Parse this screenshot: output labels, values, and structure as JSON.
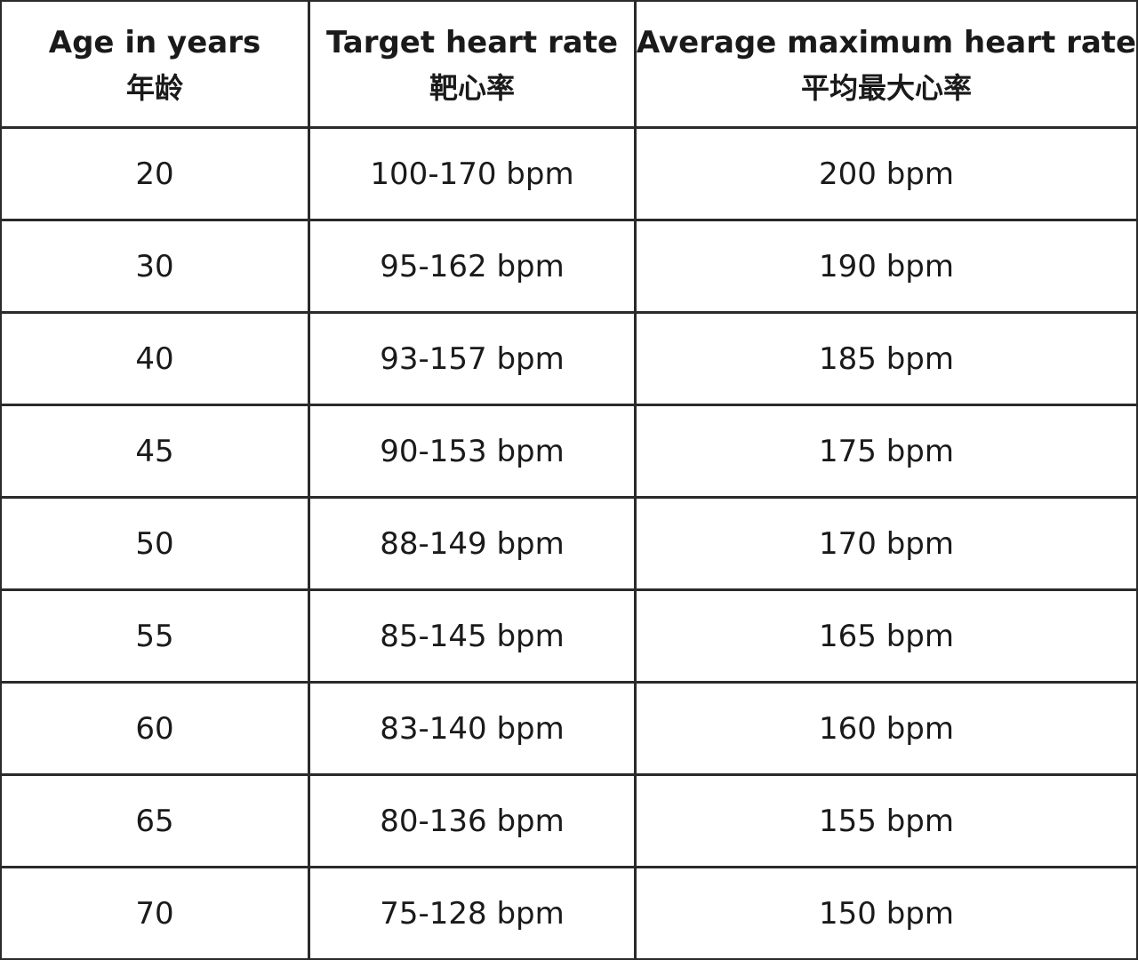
{
  "table": {
    "columns": [
      {
        "title": "Age in years",
        "subtitle": "年龄"
      },
      {
        "title": "Target heart rate",
        "subtitle": "靶心率"
      },
      {
        "title": "Average maximum heart rate",
        "subtitle": "平均最大心率"
      }
    ],
    "rows": [
      [
        "20",
        "100-170 bpm",
        "200 bpm"
      ],
      [
        "30",
        "95-162 bpm",
        "190 bpm"
      ],
      [
        "40",
        "93-157 bpm",
        "185 bpm"
      ],
      [
        "45",
        "90-153 bpm",
        "175 bpm"
      ],
      [
        "50",
        "88-149 bpm",
        "170 bpm"
      ],
      [
        "55",
        "85-145 bpm",
        "165 bpm"
      ],
      [
        "60",
        "83-140 bpm",
        "160 bpm"
      ],
      [
        "65",
        "80-136 bpm",
        "155 bpm"
      ],
      [
        "70",
        "75-128 bpm",
        "150 bpm"
      ]
    ]
  }
}
